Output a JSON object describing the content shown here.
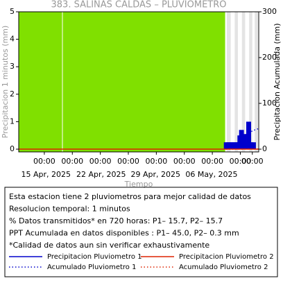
{
  "chart_data": {
    "type": "bar",
    "title": "383. SALINAS CALDAS – PLUVIOMETRO",
    "ylabel": "Precipitacion 1 minutos (mm)",
    "y2label": "Precipitacion Acumulada (mm)",
    "xlabel": "Tiempo",
    "xlim": [
      0,
      30
    ],
    "ylim": [
      -0.1,
      5
    ],
    "yticks": [
      0,
      1,
      2,
      3,
      4,
      5
    ],
    "y2lim": [
      -6,
      300
    ],
    "y2ticks": [
      0,
      100,
      200,
      300
    ],
    "xticks": [
      {
        "value": 3.2,
        "label": "00:00"
      },
      {
        "value": 6.7,
        "label": "00:00"
      },
      {
        "value": 10.2,
        "label": "00:00"
      },
      {
        "value": 13.7,
        "label": "00:00"
      },
      {
        "value": 17.2,
        "label": "00:00"
      },
      {
        "value": 20.7,
        "label": "00:00"
      },
      {
        "value": 24.2,
        "label": "00:00"
      },
      {
        "value": 27.7,
        "label": "00:00"
      },
      {
        "value": 29.2,
        "label": "00:00"
      }
    ],
    "xdates": [
      {
        "value": 3.4,
        "label": "15 Apr, 2025"
      },
      {
        "value": 10.3,
        "label": "22 Apr, 2025"
      },
      {
        "value": 17.1,
        "label": "29 Apr, 2025"
      },
      {
        "value": 24.1,
        "label": "06 May, 2025"
      }
    ],
    "shading": [
      {
        "start": 0,
        "end": 25.8,
        "color": "#80e000"
      },
      {
        "start": 26.0,
        "end": 26.5,
        "color": "#e4e4e4"
      },
      {
        "start": 27.0,
        "end": 27.4,
        "color": "#e4e4e4"
      },
      {
        "start": 27.9,
        "end": 28.3,
        "color": "#e4e4e4"
      },
      {
        "start": 28.8,
        "end": 29.2,
        "color": "#e4e4e4"
      },
      {
        "start": 29.5,
        "end": 29.9,
        "color": "#e4e4e4"
      }
    ],
    "series": [
      {
        "name": "Precipitacion Pluviometro 1",
        "color": "#0000cc",
        "style": "bar",
        "x": [
          25.9,
          26.2,
          26.5,
          26.8,
          27.1,
          27.4,
          27.6,
          27.8,
          28.1,
          28.4,
          28.7,
          29.0,
          29.3
        ],
        "values": [
          0.25,
          0.25,
          0.25,
          0.25,
          0.25,
          0.25,
          0.5,
          0.7,
          0.55,
          0.25,
          1.0,
          0.25,
          0.25
        ]
      },
      {
        "name": "Precipitacion Pluviometro 2",
        "color": "#dd2200",
        "style": "solid",
        "x": [
          0,
          30
        ],
        "values": [
          0,
          0
        ]
      },
      {
        "name": "Acumulado Pluviometro 1",
        "color": "#0000cc",
        "style": "dotted",
        "axis": "y2",
        "x": [
          25.9,
          26.5,
          27.0,
          27.5,
          28.0,
          28.5,
          29.0,
          29.5,
          30.0
        ],
        "values": [
          0,
          5,
          10,
          16,
          24,
          33,
          38,
          42,
          45
        ]
      },
      {
        "name": "Acumulado Pluviometro 2",
        "color": "#dd2200",
        "style": "dotted",
        "axis": "y2",
        "x": [
          25.9,
          30
        ],
        "values": [
          0,
          0.3
        ]
      }
    ]
  },
  "notes": [
    "Esta estacion tiene 2 pluviometros para mejor calidad de datos",
    "Resolucion temporal: 1 minutos",
    "% Datos transmitidos* en 720 horas: P1– 15.7, P2– 15.7",
    "PPT Acumulada en datos disponibles : P1– 45.0, P2–  0.3 mm",
    "*Calidad de datos aun sin verificar exhaustivamente"
  ]
}
